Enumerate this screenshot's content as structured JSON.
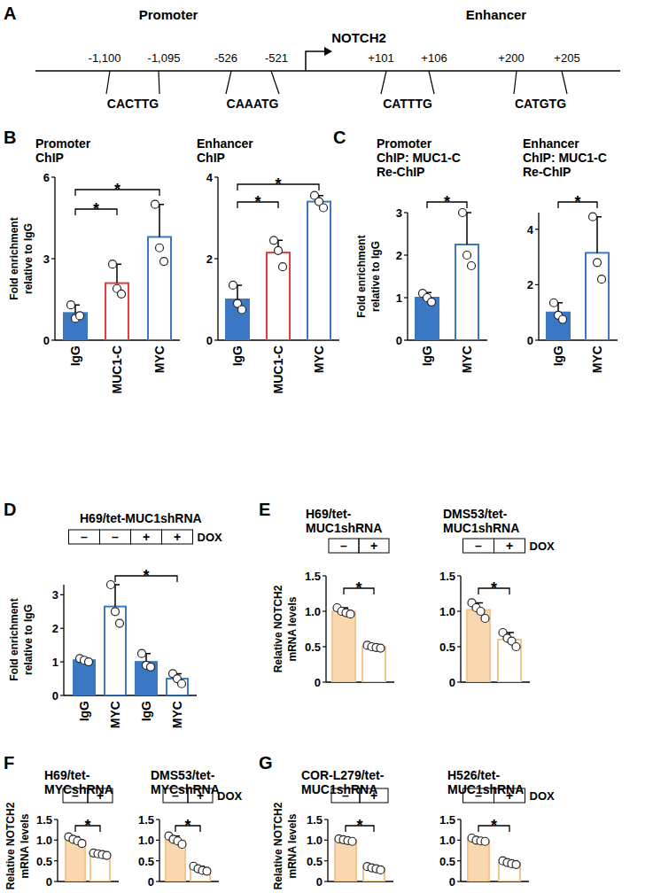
{
  "panel_labels": [
    "A",
    "B",
    "C",
    "D",
    "E",
    "F",
    "G"
  ],
  "diagram": {
    "regions": [
      "Promoter",
      "Enhancer"
    ],
    "gene": "NOTCH2",
    "sites": [
      {
        "start": "-1,100",
        "end": "-1,095",
        "sequence": "CACTTG"
      },
      {
        "start": "-526",
        "end": "-521",
        "sequence": "CAAATG"
      },
      {
        "start": "+101",
        "end": "+106",
        "sequence": "CATTTG"
      },
      {
        "start": "+200",
        "end": "+205",
        "sequence": "CATGTG"
      }
    ]
  },
  "chart_data": [
    {
      "type": "bar",
      "title": [
        "Promoter",
        "ChIP"
      ],
      "ylabel": [
        "Fold enrichment",
        "relative to IgG"
      ],
      "categories": [
        "IgG",
        "MUC1-C",
        "MYC"
      ],
      "values": [
        1.0,
        2.1,
        3.8
      ],
      "errors": [
        0.3,
        0.7,
        1.2
      ],
      "points": [
        [
          1.3,
          0.8,
          0.9
        ],
        [
          2.8,
          1.9,
          1.7
        ],
        [
          5.0,
          3.4,
          2.9
        ]
      ],
      "colors": [
        "#3b78c4",
        "#e23b3b",
        "#3b78c4"
      ],
      "fill_colors": [
        "#3b78c4",
        "#ffffff",
        "#ffffff"
      ],
      "ylim": [
        0,
        6
      ],
      "yticks": [
        0,
        3,
        6
      ],
      "significance": [
        {
          "from": 0,
          "to": 1,
          "label": "*"
        },
        {
          "from": 0,
          "to": 2,
          "label": "*"
        }
      ]
    },
    {
      "type": "bar",
      "title": [
        "Enhancer",
        "ChIP"
      ],
      "categories": [
        "IgG",
        "MUC1-C",
        "MYC"
      ],
      "values": [
        1.0,
        2.15,
        3.4
      ],
      "errors": [
        0.35,
        0.3,
        0.15
      ],
      "points": [
        [
          1.35,
          0.9,
          0.75
        ],
        [
          2.45,
          2.2,
          1.8
        ],
        [
          3.55,
          3.4,
          3.25
        ]
      ],
      "colors": [
        "#3b78c4",
        "#e23b3b",
        "#3b78c4"
      ],
      "fill_colors": [
        "#3b78c4",
        "#ffffff",
        "#ffffff"
      ],
      "ylim": [
        0,
        4
      ],
      "yticks": [
        0,
        2,
        4
      ],
      "significance": [
        {
          "from": 0,
          "to": 1,
          "label": "*"
        },
        {
          "from": 0,
          "to": 2,
          "label": "*"
        }
      ]
    },
    {
      "type": "bar",
      "title": [
        "Promoter",
        "ChIP: MUC1-C",
        "Re-ChIP"
      ],
      "ylabel": [
        "Fold enrichment",
        "relative to IgG"
      ],
      "categories": [
        "IgG",
        "MYC"
      ],
      "values": [
        1.0,
        2.25
      ],
      "errors": [
        0.12,
        0.75
      ],
      "points": [
        [
          1.1,
          1.0,
          0.9
        ],
        [
          3.0,
          2.0,
          1.75
        ]
      ],
      "colors": [
        "#3b78c4",
        "#3b78c4"
      ],
      "fill_colors": [
        "#3b78c4",
        "#ffffff"
      ],
      "ylim": [
        0,
        3
      ],
      "yticks": [
        0,
        1,
        2,
        3
      ],
      "significance": [
        {
          "from": 0,
          "to": 1,
          "label": "*"
        }
      ]
    },
    {
      "type": "bar",
      "title": [
        "Enhancer",
        "ChIP: MUC1-C",
        "Re-ChIP"
      ],
      "categories": [
        "IgG",
        "MYC"
      ],
      "values": [
        1.0,
        3.15
      ],
      "errors": [
        0.35,
        1.3
      ],
      "points": [
        [
          1.35,
          0.9,
          0.75
        ],
        [
          4.45,
          2.8,
          2.2
        ]
      ],
      "colors": [
        "#3b78c4",
        "#3b78c4"
      ],
      "fill_colors": [
        "#3b78c4",
        "#ffffff"
      ],
      "ylim": [
        0,
        4.6
      ],
      "yticks": [
        0,
        2,
        4
      ],
      "significance": [
        {
          "from": 0,
          "to": 1,
          "label": "*"
        }
      ]
    },
    {
      "type": "bar",
      "title": [
        "H69/tet-MUC1shRNA"
      ],
      "treatment": [
        "–",
        "–",
        "+",
        "+"
      ],
      "treatment_label": "DOX",
      "ylabel": [
        "Fold enrichment",
        "relative to IgG"
      ],
      "categories": [
        "IgG",
        "MYC",
        "IgG",
        "MYC"
      ],
      "values": [
        1.05,
        2.65,
        1.0,
        0.5
      ],
      "errors": [
        0.05,
        0.65,
        0.25,
        0.15
      ],
      "points": [
        [
          1.1,
          1.05,
          1.0
        ],
        [
          3.3,
          2.5,
          2.15
        ],
        [
          1.25,
          0.9,
          0.85
        ],
        [
          0.65,
          0.5,
          0.35
        ]
      ],
      "colors": [
        "#3b78c4",
        "#3b78c4",
        "#3b78c4",
        "#3b78c4"
      ],
      "fill_colors": [
        "#3b78c4",
        "#ffffff",
        "#3b78c4",
        "#ffffff"
      ],
      "ylim": [
        0,
        3.3
      ],
      "yticks": [
        0,
        1,
        2,
        3
      ],
      "significance": [
        {
          "from": 1,
          "to": 3,
          "label": "*"
        }
      ]
    },
    {
      "type": "bar",
      "title": [
        "H69/tet-",
        "MUC1shRNA"
      ],
      "treatment": [
        "–",
        "+"
      ],
      "ylabel": [
        "Relative NOTCH2",
        "mRNA levels"
      ],
      "categories": [
        null,
        null
      ],
      "tick_labels": "y",
      "values": [
        1.0,
        0.5
      ],
      "errors": [
        0.05,
        0.02
      ],
      "points": [
        [
          1.05,
          1.0,
          0.98,
          0.96
        ],
        [
          0.52,
          0.5,
          0.49,
          0.48
        ]
      ],
      "colors": [
        "#f4c48f",
        "#f4c48f"
      ],
      "fill_colors": [
        "#f9d8b0",
        "#ffffff"
      ],
      "ylim": [
        0,
        1.5
      ],
      "yticks": [
        0,
        0.5,
        {
          "value": 1,
          "label": "1.0"
        },
        {
          "value": 1.5,
          "label": "1.5"
        }
      ],
      "significance": [
        {
          "from": 0,
          "to": 1,
          "label": "*"
        }
      ]
    },
    {
      "type": "bar",
      "title": [
        "DMS53/tet-",
        "MUC1shRNA"
      ],
      "treatment": [
        "–",
        "+"
      ],
      "treatment_label": "DOX",
      "categories": [
        null,
        null
      ],
      "tick_labels": "y",
      "values": [
        1.02,
        0.6
      ],
      "errors": [
        0.1,
        0.1
      ],
      "points": [
        [
          1.12,
          1.05,
          1.0,
          0.9
        ],
        [
          0.7,
          0.62,
          0.58,
          0.5
        ]
      ],
      "colors": [
        "#f4c48f",
        "#f4c48f"
      ],
      "fill_colors": [
        "#f9d8b0",
        "#ffffff"
      ],
      "ylim": [
        0,
        1.5
      ],
      "yticks": [
        0,
        0.5,
        {
          "value": 1,
          "label": "1.0"
        },
        {
          "value": 1.5,
          "label": "1.5"
        }
      ],
      "significance": [
        {
          "from": 0,
          "to": 1,
          "label": "*"
        }
      ]
    },
    {
      "type": "bar",
      "title": [
        "H69/tet-",
        "MYCshRNA"
      ],
      "treatment": [
        "–",
        "+"
      ],
      "ylabel": [
        "Relative NOTCH2",
        "mRNA levels"
      ],
      "categories": [
        null,
        null
      ],
      "tick_labels": "y",
      "values": [
        1.0,
        0.66
      ],
      "errors": [
        0.08,
        0.03
      ],
      "points": [
        [
          1.08,
          1.02,
          0.98,
          0.92
        ],
        [
          0.69,
          0.67,
          0.65,
          0.63
        ]
      ],
      "colors": [
        "#f4c48f",
        "#f4c48f"
      ],
      "fill_colors": [
        "#f9d8b0",
        "#ffffff"
      ],
      "ylim": [
        0,
        1.5
      ],
      "yticks": [
        0,
        0.5,
        {
          "value": 1,
          "label": "1.0"
        },
        {
          "value": 1.5,
          "label": "1.5"
        }
      ],
      "significance": [
        {
          "from": 0,
          "to": 1,
          "label": "*"
        }
      ]
    },
    {
      "type": "bar",
      "title": [
        "DMS53/tet-",
        "MYCshRNA"
      ],
      "treatment": [
        "–",
        "+"
      ],
      "treatment_label": "DOX",
      "categories": [
        null,
        null
      ],
      "tick_labels": "y",
      "values": [
        1.0,
        0.3
      ],
      "errors": [
        0.1,
        0.07
      ],
      "points": [
        [
          1.1,
          1.02,
          0.98,
          0.9
        ],
        [
          0.37,
          0.31,
          0.27,
          0.25
        ]
      ],
      "colors": [
        "#f4c48f",
        "#f4c48f"
      ],
      "fill_colors": [
        "#f9d8b0",
        "#ffffff"
      ],
      "ylim": [
        0,
        1.5
      ],
      "yticks": [
        0,
        0.5,
        {
          "value": 1,
          "label": "1.0"
        },
        {
          "value": 1.5,
          "label": "1.5"
        }
      ],
      "significance": [
        {
          "from": 0,
          "to": 1,
          "label": "*"
        }
      ]
    },
    {
      "type": "bar",
      "title": [
        "COR-L279/tet-",
        "MUC1shRNA"
      ],
      "treatment": [
        "–",
        "+"
      ],
      "ylabel": [
        "Relative NOTCH2",
        "mRNA levels"
      ],
      "categories": [
        null,
        null
      ],
      "tick_labels": "y",
      "values": [
        1.0,
        0.32
      ],
      "errors": [
        0.03,
        0.04
      ],
      "points": [
        [
          1.03,
          1.01,
          0.99,
          0.97
        ],
        [
          0.36,
          0.33,
          0.31,
          0.28
        ]
      ],
      "colors": [
        "#f4c48f",
        "#f4c48f"
      ],
      "fill_colors": [
        "#f9d8b0",
        "#ffffff"
      ],
      "ylim": [
        0,
        1.5
      ],
      "yticks": [
        0,
        0.5,
        {
          "value": 1,
          "label": "1.0"
        },
        {
          "value": 1.5,
          "label": "1.5"
        }
      ],
      "significance": [
        {
          "from": 0,
          "to": 1,
          "label": "*"
        }
      ]
    },
    {
      "type": "bar",
      "title": [
        "H526/tet-",
        "MUC1shRNA"
      ],
      "treatment": [
        "–",
        "+"
      ],
      "treatment_label": "DOX",
      "categories": [
        null,
        null
      ],
      "tick_labels": "y",
      "values": [
        1.0,
        0.45
      ],
      "errors": [
        0.05,
        0.05
      ],
      "points": [
        [
          1.05,
          1.0,
          0.98,
          0.97
        ],
        [
          0.5,
          0.46,
          0.43,
          0.41
        ]
      ],
      "colors": [
        "#f4c48f",
        "#f4c48f"
      ],
      "fill_colors": [
        "#f9d8b0",
        "#ffffff"
      ],
      "ylim": [
        0,
        1.5
      ],
      "yticks": [
        0,
        0.5,
        {
          "value": 1,
          "label": "1.0"
        },
        {
          "value": 1.5,
          "label": "1.5"
        }
      ],
      "significance": [
        {
          "from": 0,
          "to": 1,
          "label": "*"
        }
      ]
    }
  ]
}
